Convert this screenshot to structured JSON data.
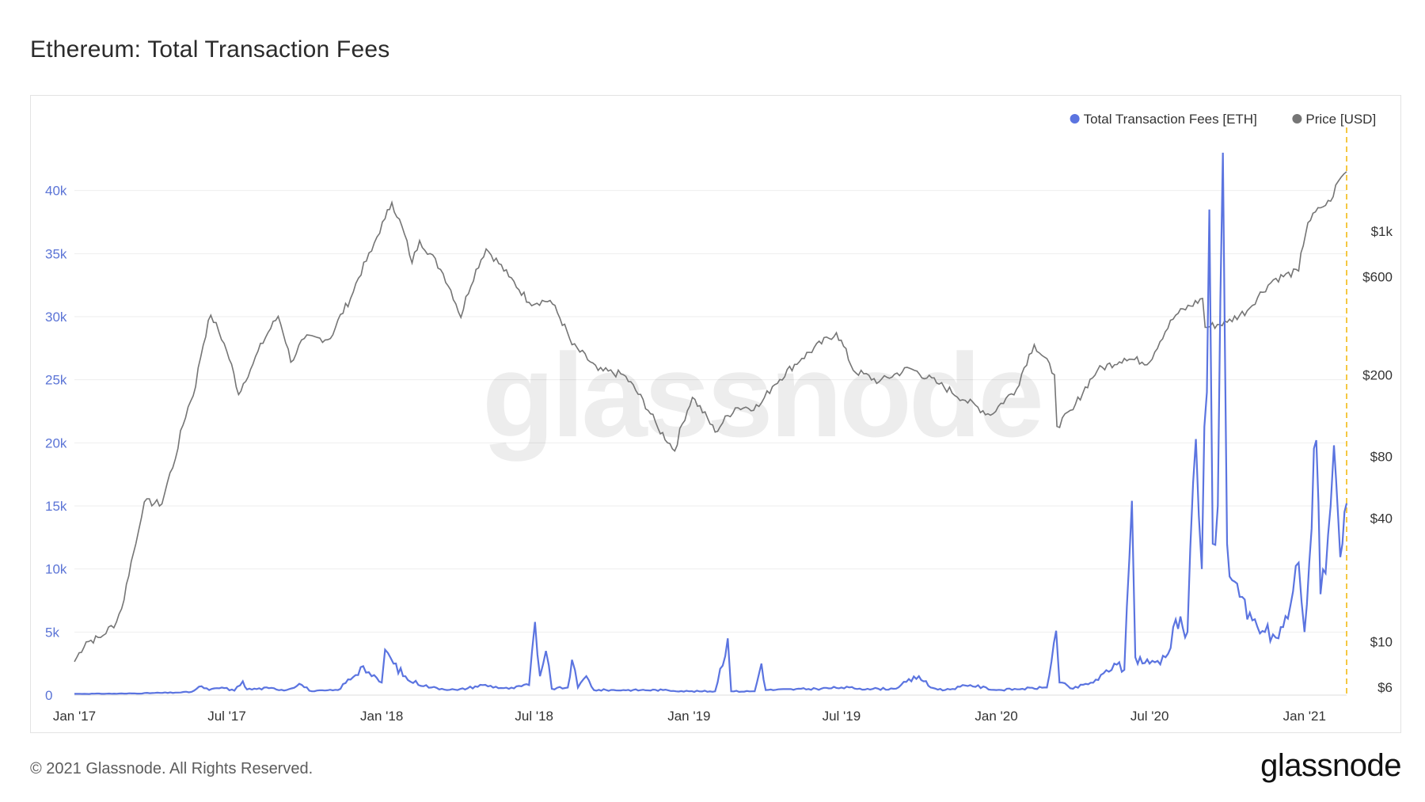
{
  "title": "Ethereum: Total Transaction Fees",
  "footer": {
    "copyright": "© 2021 Glassnode. All Rights Reserved.",
    "logo": "glassnode"
  },
  "watermark": "glassnode",
  "colors": {
    "fees": "#5b74e0",
    "price": "#757575",
    "today_line": "#f5c842",
    "grid": "#eeeeee"
  },
  "chart_data": {
    "type": "line",
    "title": "Ethereum: Total Transaction Fees",
    "legend": [
      {
        "name": "Total Transaction Fees [ETH]",
        "color": "#5b74e0"
      },
      {
        "name": "Price [USD]",
        "color": "#757575"
      }
    ],
    "legend_position": "top-right",
    "grid": true,
    "x_range": [
      "2017-01-01",
      "2021-02-20"
    ],
    "x_ticks": [
      "Jan '17",
      "Jul '17",
      "Jan '18",
      "Jul '18",
      "Jan '19",
      "Jul '19",
      "Jan '20",
      "Jul '20",
      "Jan '21"
    ],
    "y_left": {
      "scale": "linear",
      "range": [
        0,
        45000
      ],
      "ticks": [
        0,
        5000,
        10000,
        15000,
        20000,
        25000,
        30000,
        35000,
        40000
      ],
      "tick_labels": [
        "0",
        "5k",
        "10k",
        "15k",
        "20k",
        "25k",
        "30k",
        "35k",
        "40k"
      ]
    },
    "y_right": {
      "scale": "log",
      "range": [
        5.5,
        3200
      ],
      "ticks": [
        6,
        10,
        40,
        80,
        200,
        600,
        1000
      ],
      "tick_labels": [
        "$6",
        "$10",
        "$40",
        "$80",
        "$200",
        "$600",
        "$1k"
      ]
    },
    "series": [
      {
        "name": "Total Transaction Fees [ETH]",
        "axis": "left",
        "points": [
          [
            "2017-01-01",
            100
          ],
          [
            "2017-03-01",
            120
          ],
          [
            "2017-05-01",
            200
          ],
          [
            "2017-05-20",
            250
          ],
          [
            "2017-06-01",
            700
          ],
          [
            "2017-06-10",
            400
          ],
          [
            "2017-06-25",
            600
          ],
          [
            "2017-07-10",
            350
          ],
          [
            "2017-07-20",
            1100
          ],
          [
            "2017-07-25",
            450
          ],
          [
            "2017-08-20",
            550
          ],
          [
            "2017-09-10",
            400
          ],
          [
            "2017-09-25",
            900
          ],
          [
            "2017-10-10",
            300
          ],
          [
            "2017-11-10",
            400
          ],
          [
            "2017-12-10",
            2300
          ],
          [
            "2017-12-20",
            1500
          ],
          [
            "2018-01-01",
            1000
          ],
          [
            "2018-01-05",
            3600
          ],
          [
            "2018-01-15",
            2500
          ],
          [
            "2018-02-01",
            1200
          ],
          [
            "2018-03-01",
            600
          ],
          [
            "2018-04-01",
            400
          ],
          [
            "2018-05-01",
            800
          ],
          [
            "2018-06-01",
            500
          ],
          [
            "2018-06-25",
            800
          ],
          [
            "2018-07-02",
            5800
          ],
          [
            "2018-07-08",
            1500
          ],
          [
            "2018-07-15",
            3500
          ],
          [
            "2018-07-22",
            500
          ],
          [
            "2018-08-10",
            600
          ],
          [
            "2018-08-15",
            2800
          ],
          [
            "2018-08-22",
            600
          ],
          [
            "2018-09-01",
            1500
          ],
          [
            "2018-09-10",
            400
          ],
          [
            "2018-10-15",
            400
          ],
          [
            "2018-12-01",
            400
          ],
          [
            "2019-01-01",
            300
          ],
          [
            "2019-02-01",
            300
          ],
          [
            "2019-02-16",
            4500
          ],
          [
            "2019-02-20",
            300
          ],
          [
            "2019-03-20",
            300
          ],
          [
            "2019-03-28",
            2500
          ],
          [
            "2019-04-02",
            400
          ],
          [
            "2019-06-01",
            500
          ],
          [
            "2019-07-01",
            600
          ],
          [
            "2019-08-01",
            500
          ],
          [
            "2019-09-01",
            500
          ],
          [
            "2019-10-01",
            1500
          ],
          [
            "2019-10-15",
            600
          ],
          [
            "2019-11-01",
            400
          ],
          [
            "2019-12-01",
            800
          ],
          [
            "2020-01-01",
            400
          ],
          [
            "2020-02-01",
            500
          ],
          [
            "2020-03-01",
            600
          ],
          [
            "2020-03-12",
            5100
          ],
          [
            "2020-03-16",
            1000
          ],
          [
            "2020-04-01",
            500
          ],
          [
            "2020-05-01",
            1200
          ],
          [
            "2020-05-20",
            2500
          ],
          [
            "2020-06-01",
            2000
          ],
          [
            "2020-06-10",
            15400
          ],
          [
            "2020-06-14",
            3000
          ],
          [
            "2020-07-01",
            2500
          ],
          [
            "2020-07-20",
            3000
          ],
          [
            "2020-08-01",
            6000
          ],
          [
            "2020-08-15",
            5000
          ],
          [
            "2020-08-25",
            20300
          ],
          [
            "2020-09-01",
            10000
          ],
          [
            "2020-09-10",
            38500
          ],
          [
            "2020-09-14",
            12000
          ],
          [
            "2020-09-20",
            15000
          ],
          [
            "2020-09-26",
            43000
          ],
          [
            "2020-10-01",
            12000
          ],
          [
            "2020-10-10",
            9000
          ],
          [
            "2020-10-25",
            6000
          ],
          [
            "2020-11-15",
            5000
          ],
          [
            "2020-12-01",
            4500
          ],
          [
            "2020-12-15",
            7000
          ],
          [
            "2020-12-25",
            10500
          ],
          [
            "2021-01-01",
            5000
          ],
          [
            "2021-01-15",
            20200
          ],
          [
            "2021-01-20",
            8000
          ],
          [
            "2021-02-01",
            15000
          ],
          [
            "2021-02-05",
            19800
          ],
          [
            "2021-02-10",
            14000
          ],
          [
            "2021-02-15",
            12000
          ],
          [
            "2021-02-20",
            15200
          ]
        ]
      },
      {
        "name": "Price [USD]",
        "axis": "right",
        "points": [
          [
            "2017-01-01",
            8
          ],
          [
            "2017-01-15",
            10
          ],
          [
            "2017-02-01",
            10.5
          ],
          [
            "2017-02-20",
            12.5
          ],
          [
            "2017-03-01",
            16
          ],
          [
            "2017-03-15",
            30
          ],
          [
            "2017-03-25",
            48
          ],
          [
            "2017-04-15",
            47
          ],
          [
            "2017-05-01",
            78
          ],
          [
            "2017-05-25",
            175
          ],
          [
            "2017-06-12",
            390
          ],
          [
            "2017-07-01",
            260
          ],
          [
            "2017-07-15",
            160
          ],
          [
            "2017-08-01",
            225
          ],
          [
            "2017-08-31",
            385
          ],
          [
            "2017-09-15",
            230
          ],
          [
            "2017-10-01",
            300
          ],
          [
            "2017-11-01",
            300
          ],
          [
            "2017-11-25",
            470
          ],
          [
            "2017-12-20",
            800
          ],
          [
            "2018-01-05",
            1150
          ],
          [
            "2018-01-13",
            1380
          ],
          [
            "2018-02-06",
            700
          ],
          [
            "2018-02-15",
            900
          ],
          [
            "2018-03-15",
            620
          ],
          [
            "2018-04-05",
            380
          ],
          [
            "2018-05-05",
            820
          ],
          [
            "2018-06-01",
            600
          ],
          [
            "2018-06-25",
            450
          ],
          [
            "2018-07-20",
            460
          ],
          [
            "2018-08-15",
            280
          ],
          [
            "2018-09-15",
            210
          ],
          [
            "2018-10-15",
            200
          ],
          [
            "2018-11-25",
            110
          ],
          [
            "2018-12-15",
            85
          ],
          [
            "2019-01-05",
            155
          ],
          [
            "2019-02-01",
            105
          ],
          [
            "2019-02-25",
            138
          ],
          [
            "2019-03-25",
            140
          ],
          [
            "2019-04-10",
            175
          ],
          [
            "2019-05-15",
            240
          ],
          [
            "2019-06-25",
            320
          ],
          [
            "2019-07-15",
            210
          ],
          [
            "2019-08-15",
            185
          ],
          [
            "2019-09-20",
            215
          ],
          [
            "2019-10-25",
            180
          ],
          [
            "2019-11-25",
            150
          ],
          [
            "2019-12-25",
            127
          ],
          [
            "2020-01-25",
            170
          ],
          [
            "2020-02-15",
            280
          ],
          [
            "2020-03-10",
            200
          ],
          [
            "2020-03-13",
            112
          ],
          [
            "2020-04-01",
            135
          ],
          [
            "2020-04-30",
            210
          ],
          [
            "2020-06-01",
            240
          ],
          [
            "2020-07-01",
            230
          ],
          [
            "2020-08-01",
            390
          ],
          [
            "2020-09-02",
            470
          ],
          [
            "2020-09-05",
            340
          ],
          [
            "2020-10-01",
            360
          ],
          [
            "2020-10-25",
            410
          ],
          [
            "2020-11-25",
            580
          ],
          [
            "2020-12-25",
            640
          ],
          [
            "2021-01-05",
            1100
          ],
          [
            "2021-01-20",
            1300
          ],
          [
            "2021-02-01",
            1400
          ],
          [
            "2021-02-10",
            1750
          ],
          [
            "2021-02-20",
            1950
          ]
        ]
      }
    ]
  }
}
